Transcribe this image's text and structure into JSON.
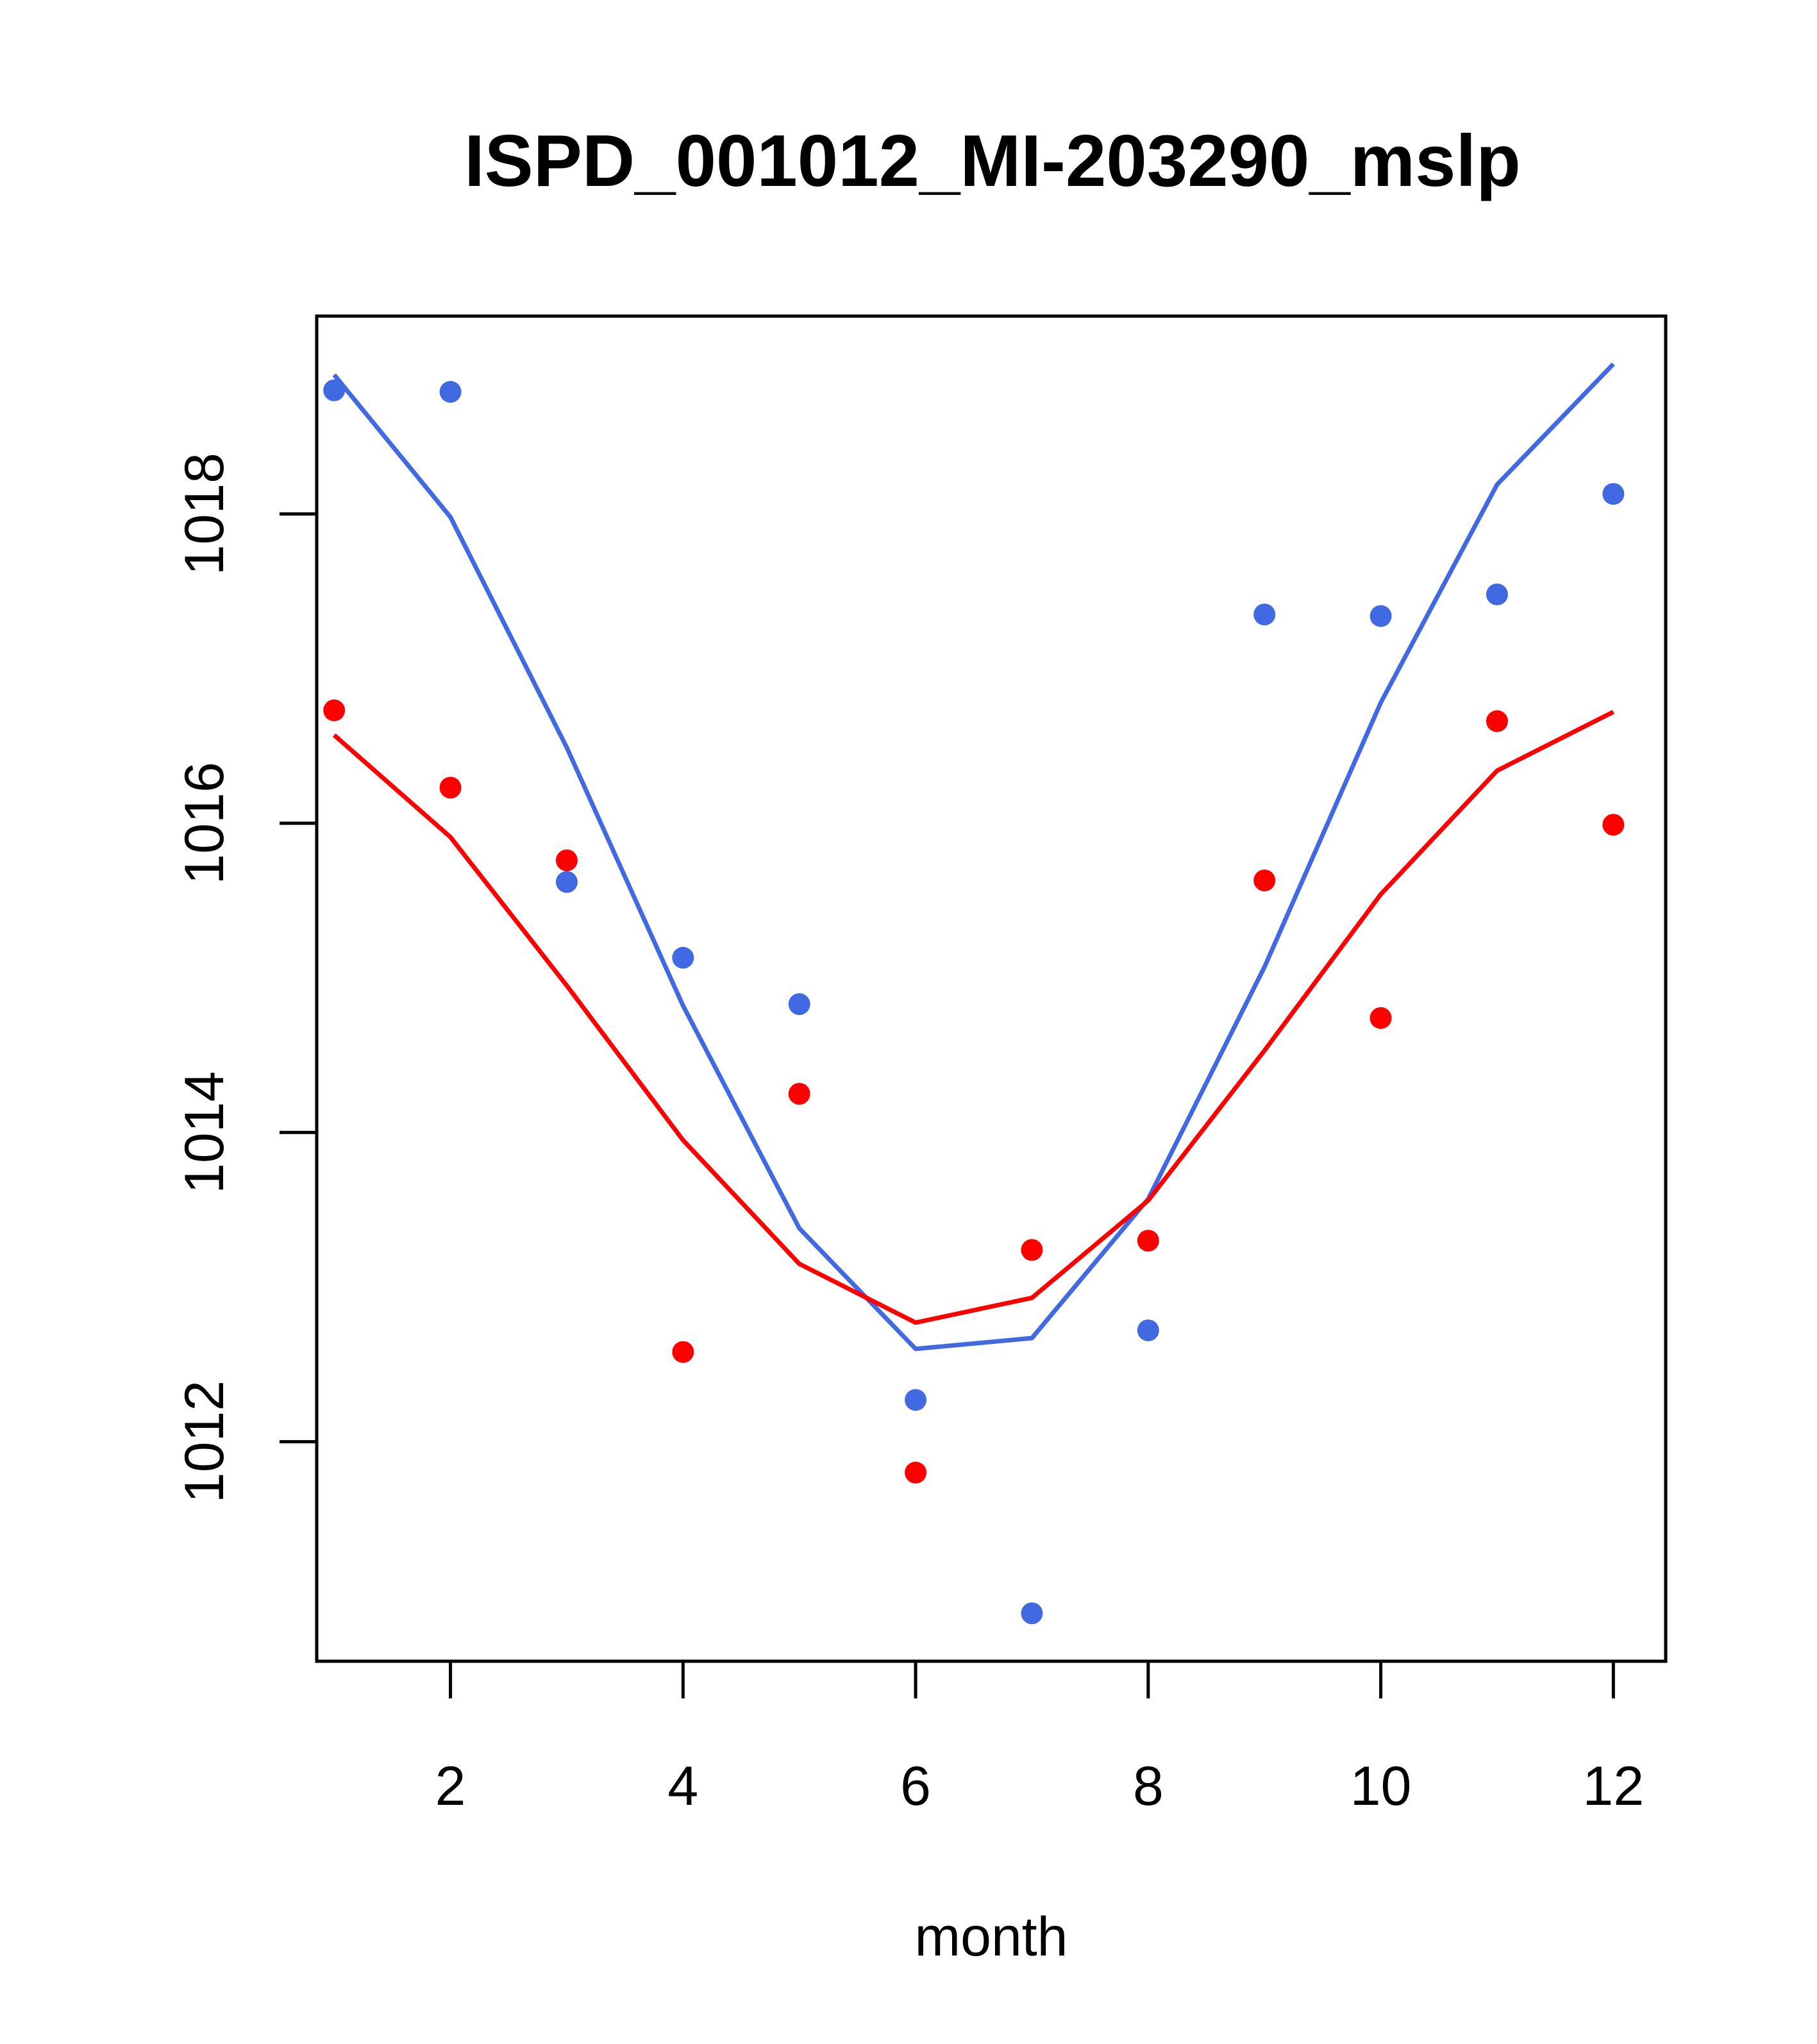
{
  "chart_data": {
    "type": "scatter",
    "title": "ISPD_001012_MI-203290_mslp",
    "xlabel": "month",
    "ylabel": "",
    "xlim": [
      0.85,
      12.45
    ],
    "ylim": [
      1010.58,
      1019.28
    ],
    "xticks": [
      2,
      4,
      6,
      8,
      10,
      12
    ],
    "yticks": [
      1012,
      1014,
      1016,
      1018
    ],
    "grid": false,
    "legend": "none",
    "x": [
      1,
      2,
      3,
      4,
      5,
      6,
      7,
      8,
      9,
      10,
      11,
      12
    ],
    "series": [
      {
        "color": "#4169E1",
        "points": [
          1018.8,
          1018.79,
          1015.62,
          1015.13,
          1014.83,
          1012.27,
          1010.89,
          1012.72,
          1017.35,
          1017.34,
          1017.48,
          1018.13
        ],
        "line": [
          1018.9,
          1017.98,
          1016.49,
          1014.82,
          1013.38,
          1012.6,
          1012.67,
          1013.57,
          1015.07,
          1016.78,
          1018.19,
          1018.97
        ]
      },
      {
        "color": "#FF0000",
        "points": [
          1016.73,
          1016.23,
          1015.76,
          1012.58,
          1014.25,
          1011.8,
          1013.24,
          1013.3,
          1015.63,
          1014.74,
          1016.66,
          1015.99
        ],
        "line": [
          1016.57,
          1015.91,
          1014.95,
          1013.95,
          1013.15,
          1012.77,
          1012.93,
          1013.56,
          1014.53,
          1015.54,
          1016.34,
          1016.72
        ]
      }
    ]
  }
}
